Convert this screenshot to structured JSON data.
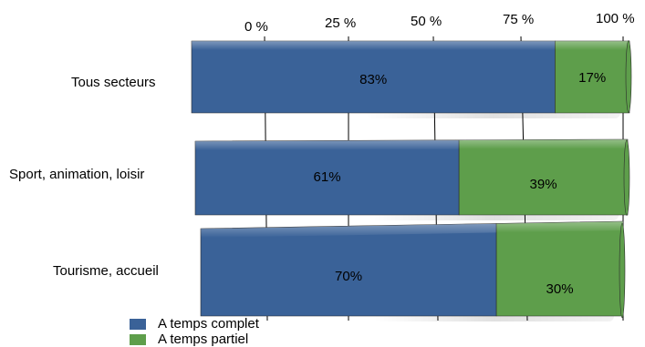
{
  "chart_data": {
    "type": "bar",
    "orientation": "horizontal",
    "stacked": true,
    "percent": true,
    "title": "",
    "xlabel": "",
    "ylabel": "",
    "xlim": [
      0,
      100
    ],
    "x_ticks": [
      "0 %",
      "25 %",
      "50 %",
      "75 %",
      "100 %"
    ],
    "categories": [
      "Tous secteurs",
      "Sport, animation, loisir",
      "Tourisme, accueil"
    ],
    "series": [
      {
        "name": "A temps complet",
        "values": [
          83,
          61,
          70
        ],
        "labels": [
          "83%",
          "61%",
          "70%"
        ],
        "color": "#3a6298"
      },
      {
        "name": "A temps partiel",
        "values": [
          17,
          39,
          30
        ],
        "labels": [
          "17%",
          "39%",
          "30%"
        ],
        "color": "#5e9e4b"
      }
    ],
    "grid": true,
    "legend_position": "bottom-left"
  }
}
